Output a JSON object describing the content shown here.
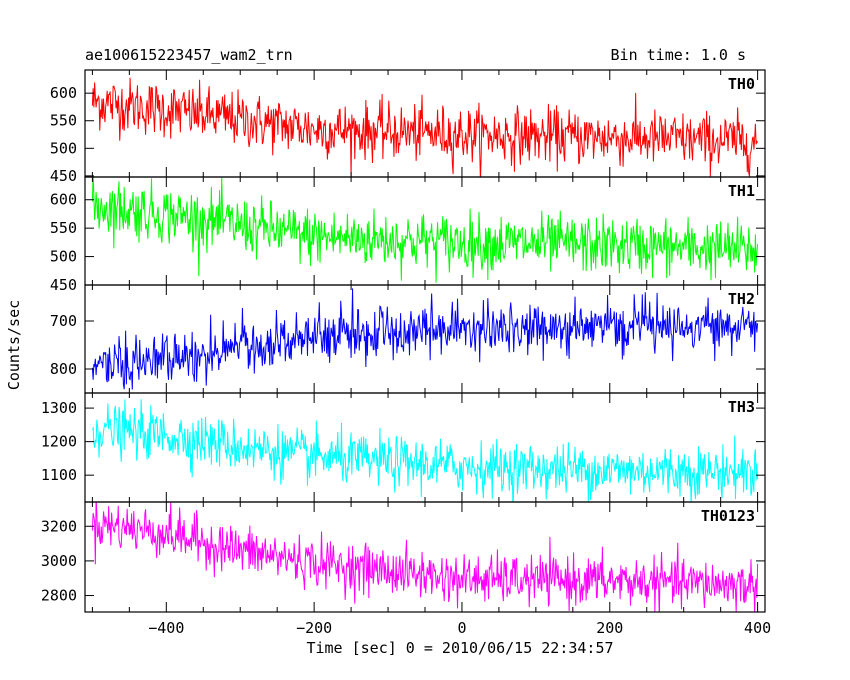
{
  "chart_data": {
    "type": "line",
    "title_left": "ae100615223457_wam2_trn",
    "title_right": "Bin time: 1.0 s",
    "xlabel": "Time [sec] 0 = 2010/06/15 22:34:57",
    "ylabel": "Counts/sec",
    "xlim": [
      -510,
      410
    ],
    "x_ticks": [
      -400,
      -200,
      0,
      200,
      400
    ],
    "x_tick_labels": [
      "−400",
      "−200",
      "0",
      "200",
      "400"
    ],
    "x_range": [
      -500,
      400
    ],
    "panels": [
      {
        "name": "TH0",
        "color": "#ff0000",
        "ylim": [
          448,
          642
        ],
        "y_ticks": [
          450,
          500,
          550,
          600
        ],
        "y_tick_labels": [
          "450",
          "500",
          "550",
          "600"
        ],
        "trend": [
          {
            "x": -500,
            "y": 585
          },
          {
            "x": -400,
            "y": 570
          },
          {
            "x": -300,
            "y": 552
          },
          {
            "x": -200,
            "y": 535
          },
          {
            "x": 0,
            "y": 525
          },
          {
            "x": 200,
            "y": 520
          },
          {
            "x": 400,
            "y": 512
          }
        ],
        "noise": 25
      },
      {
        "name": "TH1",
        "color": "#00ff00",
        "ylim": [
          450,
          640
        ],
        "y_ticks": [
          450,
          500,
          550,
          600
        ],
        "y_tick_labels": [
          "450",
          "500",
          "550",
          "600"
        ],
        "trend": [
          {
            "x": -500,
            "y": 590
          },
          {
            "x": -400,
            "y": 575
          },
          {
            "x": -300,
            "y": 555
          },
          {
            "x": -200,
            "y": 535
          },
          {
            "x": 0,
            "y": 525
          },
          {
            "x": 200,
            "y": 520
          },
          {
            "x": 400,
            "y": 512
          }
        ],
        "noise": 25
      },
      {
        "name": "TH2",
        "color": "#0000ff",
        "ylim": [
          850,
          625
        ],
        "y_ticks": [
          800,
          700
        ],
        "y_tick_labels": [
          "800",
          "700"
        ],
        "trend": [
          {
            "x": -500,
            "y": 795
          },
          {
            "x": -400,
            "y": 780
          },
          {
            "x": -300,
            "y": 755
          },
          {
            "x": -200,
            "y": 735
          },
          {
            "x": 0,
            "y": 715
          },
          {
            "x": 200,
            "y": 710
          },
          {
            "x": 400,
            "y": 705
          }
        ],
        "noise": 26
      },
      {
        "name": "TH3",
        "color": "#00ffff",
        "ylim": [
          1020,
          1345
        ],
        "y_ticks": [
          1100,
          1200,
          1300
        ],
        "y_tick_labels": [
          "1100",
          "1200",
          "1300"
        ],
        "trend": [
          {
            "x": -500,
            "y": 1240
          },
          {
            "x": -400,
            "y": 1220
          },
          {
            "x": -300,
            "y": 1185
          },
          {
            "x": -200,
            "y": 1155
          },
          {
            "x": 0,
            "y": 1125
          },
          {
            "x": 200,
            "y": 1115
          },
          {
            "x": 400,
            "y": 1110
          }
        ],
        "noise": 38
      },
      {
        "name": "TH0123",
        "color": "#ff00ff",
        "ylim": [
          2705,
          3340
        ],
        "y_ticks": [
          2800,
          3000,
          3200
        ],
        "y_tick_labels": [
          "2800",
          "3000",
          "3200"
        ],
        "trend": [
          {
            "x": -500,
            "y": 3220
          },
          {
            "x": -400,
            "y": 3160
          },
          {
            "x": -300,
            "y": 3060
          },
          {
            "x": -200,
            "y": 2990
          },
          {
            "x": 0,
            "y": 2895
          },
          {
            "x": 200,
            "y": 2885
          },
          {
            "x": 400,
            "y": 2860
          }
        ],
        "noise": 70
      }
    ]
  }
}
